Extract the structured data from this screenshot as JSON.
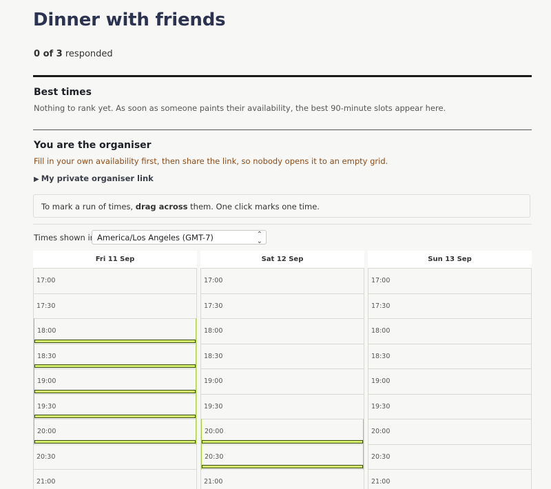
{
  "event": {
    "title": "Dinner with friends",
    "responded_count": "0 of 3",
    "responded_suffix": " responded"
  },
  "best_times": {
    "heading": "Best times",
    "message": "Nothing to rank yet. As soon as someone paints their availability, the best 90-minute slots appear here."
  },
  "organiser": {
    "heading": "You are the organiser",
    "note": "Fill in your own availability first, then share the link, so nobody opens it to an empty grid.",
    "private_link_label": "My private organiser link",
    "toggle_icon": "triangle-right-icon"
  },
  "hint": {
    "prefix": "To mark a run of times, ",
    "bold": "drag across",
    "suffix": " them. One click marks one time."
  },
  "timezone": {
    "label": "Times shown in",
    "selected": "America/Los Angeles (GMT-7)",
    "chevron_icon": "updown-chevron-icon"
  },
  "colors": {
    "selected_fill": "#d4ef6c",
    "selected_border": "#3d4d12",
    "organiser_note": "#8a4b16",
    "title": "#2c3350"
  },
  "days": [
    {
      "label": "Fri 11 Sep",
      "slots": [
        {
          "time": "17:00",
          "selected": false
        },
        {
          "time": "17:30",
          "selected": false
        },
        {
          "time": "18:00",
          "selected": true
        },
        {
          "time": "18:30",
          "selected": true
        },
        {
          "time": "19:00",
          "selected": true
        },
        {
          "time": "19:30",
          "selected": true
        },
        {
          "time": "20:00",
          "selected": true
        },
        {
          "time": "20:30",
          "selected": false
        },
        {
          "time": "21:00",
          "selected": false
        }
      ]
    },
    {
      "label": "Sat 12 Sep",
      "slots": [
        {
          "time": "17:00",
          "selected": false
        },
        {
          "time": "17:30",
          "selected": false
        },
        {
          "time": "18:00",
          "selected": false
        },
        {
          "time": "18:30",
          "selected": false
        },
        {
          "time": "19:00",
          "selected": false
        },
        {
          "time": "19:30",
          "selected": false
        },
        {
          "time": "20:00",
          "selected": true
        },
        {
          "time": "20:30",
          "selected": true
        },
        {
          "time": "21:00",
          "selected": false
        }
      ]
    },
    {
      "label": "Sun 13 Sep",
      "slots": [
        {
          "time": "17:00",
          "selected": false
        },
        {
          "time": "17:30",
          "selected": false
        },
        {
          "time": "18:00",
          "selected": false
        },
        {
          "time": "18:30",
          "selected": false
        },
        {
          "time": "19:00",
          "selected": false
        },
        {
          "time": "19:30",
          "selected": false
        },
        {
          "time": "20:00",
          "selected": false
        },
        {
          "time": "20:30",
          "selected": false
        },
        {
          "time": "21:00",
          "selected": false
        }
      ]
    }
  ]
}
